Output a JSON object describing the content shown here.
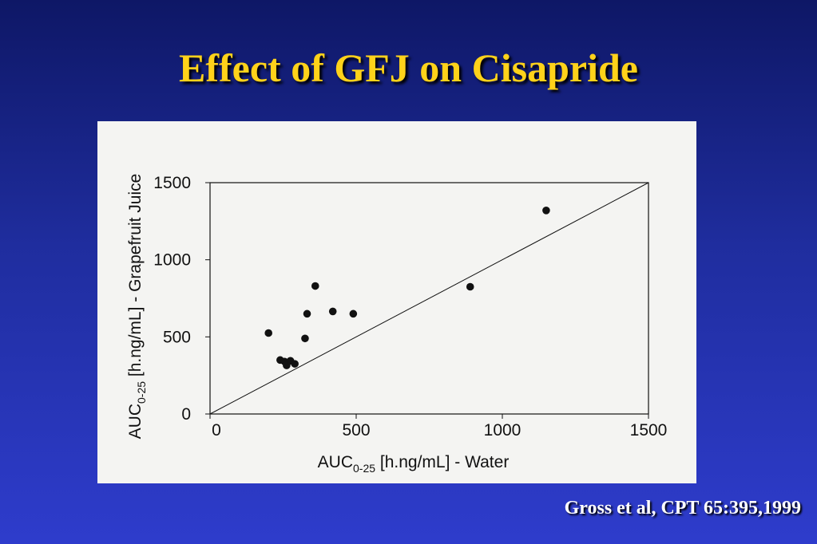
{
  "slide": {
    "title": "Effect of GFJ on Cisapride",
    "citation": "Gross et al, CPT 65:395,1999"
  },
  "colors": {
    "background_top": "#0e1766",
    "background_bottom": "#2e3ccc",
    "title": "#ffd21a",
    "citation": "#ffffff",
    "figure_bg": "#f4f4f2",
    "ink": "#111111"
  },
  "chart_data": {
    "type": "scatter",
    "title": "",
    "xlabel": {
      "prefix": "AUC",
      "subscript": "0-25",
      "suffix": " [h.ng/mL] - Water"
    },
    "ylabel": {
      "prefix": "AUC",
      "subscript": "0-25",
      "suffix": " [h.ng/mL] - Grapefruit Juice"
    },
    "xlim": [
      0,
      1500
    ],
    "ylim": [
      0,
      1500
    ],
    "xticks": [
      0,
      500,
      1000,
      1500
    ],
    "yticks": [
      0,
      500,
      1000,
      1500
    ],
    "x_tick_labels": [
      "0",
      "500",
      "1000",
      "1500"
    ],
    "y_tick_labels": [
      "0",
      "500",
      "1000",
      "1500"
    ],
    "grid": false,
    "legend": "none",
    "reference_line": {
      "type": "identity",
      "from": [
        0,
        0
      ],
      "to": [
        1500,
        1500
      ]
    },
    "points": [
      {
        "x": 200,
        "y": 525
      },
      {
        "x": 240,
        "y": 350
      },
      {
        "x": 255,
        "y": 340
      },
      {
        "x": 262,
        "y": 315
      },
      {
        "x": 275,
        "y": 345
      },
      {
        "x": 290,
        "y": 325
      },
      {
        "x": 325,
        "y": 490
      },
      {
        "x": 332,
        "y": 650
      },
      {
        "x": 360,
        "y": 830
      },
      {
        "x": 420,
        "y": 665
      },
      {
        "x": 490,
        "y": 650
      },
      {
        "x": 890,
        "y": 825
      },
      {
        "x": 1150,
        "y": 1320
      }
    ]
  }
}
